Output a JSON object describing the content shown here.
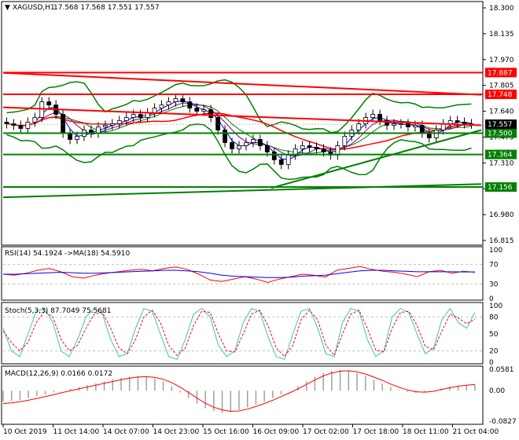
{
  "header": {
    "symbol": "XAGUSD,H1",
    "ohlc": "17.568 17.568 17.551 17.557"
  },
  "indicators": {
    "rsi_label": "RSI(14) 54.1924",
    "rsi_ma_label": "->MA(18) 54.5910",
    "stoch_label": "Stoch(5,3,3) 87.7049 75.5681",
    "macd_label": "MACD(12,26,9) 0.0166 0.0172"
  },
  "colors": {
    "background": "#ffffff",
    "candle": "#000000",
    "resistance": "#ff0000",
    "support": "#008000",
    "bollinger": "#008000",
    "ma_fast": "#0000ff",
    "ma_slow": "#800080",
    "ma_mid": "#ff0000",
    "price_tag_bg": "#000000",
    "rsi_line": "#ff0000",
    "rsi_ma": "#0000ff",
    "stoch_main": "#40c0c0",
    "stoch_signal": "#ff0000",
    "macd_hist": "#a0a0a0",
    "macd_signal": "#ff0000"
  },
  "chart_data": [
    {
      "type": "candlestick",
      "title": "XAGUSD,H1",
      "y_ticks": [
        "18.300",
        "18.135",
        "17.970",
        "17.805",
        "17.640",
        "17.475",
        "17.310",
        "17.145",
        "16.980",
        "16.815"
      ],
      "ylim": [
        16.815,
        18.3
      ],
      "x_ticks": [
        "10 Oct 2019",
        "11 Oct 14:00",
        "14 Oct 07:00",
        "14 Oct 23:00",
        "15 Oct 16:00",
        "16 Oct 09:00",
        "17 Oct 02:00",
        "17 Oct 18:00",
        "18 Oct 11:00",
        "21 Oct 04:00"
      ],
      "close_series": [
        17.56,
        17.55,
        17.53,
        17.57,
        17.6,
        17.7,
        17.68,
        17.62,
        17.5,
        17.46,
        17.48,
        17.52,
        17.5,
        17.54,
        17.55,
        17.56,
        17.58,
        17.6,
        17.62,
        17.6,
        17.63,
        17.66,
        17.68,
        17.7,
        17.72,
        17.7,
        17.66,
        17.64,
        17.65,
        17.6,
        17.52,
        17.44,
        17.4,
        17.42,
        17.44,
        17.46,
        17.42,
        17.38,
        17.33,
        17.3,
        17.36,
        17.4,
        17.42,
        17.41,
        17.4,
        17.38,
        17.36,
        17.42,
        17.48,
        17.52,
        17.56,
        17.6,
        17.62,
        17.58,
        17.55,
        17.56,
        17.56,
        17.54,
        17.55,
        17.5,
        17.47,
        17.52,
        17.56,
        17.58,
        17.57,
        17.56,
        17.557
      ],
      "levels": [
        {
          "label": "17.887",
          "value": 17.887,
          "kind": "resistance"
        },
        {
          "label": "17.748",
          "value": 17.748,
          "kind": "resistance"
        },
        {
          "label": "17.500",
          "value": 17.5,
          "kind": "support"
        },
        {
          "label": "17.364",
          "value": 17.364,
          "kind": "support"
        },
        {
          "label": "17.156",
          "value": 17.156,
          "kind": "support"
        }
      ],
      "current_price": {
        "label": "17.557",
        "value": 17.557
      }
    },
    {
      "type": "line",
      "title": "RSI(14) 54.1924 ->MA(18) 54.5910",
      "y_ticks": [
        "100",
        "70",
        "30",
        "0"
      ],
      "ylim": [
        0,
        100
      ],
      "series": [
        {
          "values": [
            50,
            48,
            52,
            58,
            62,
            55,
            45,
            42,
            48,
            52,
            55,
            58,
            60,
            57,
            62,
            65,
            60,
            50,
            38,
            35,
            40,
            45,
            40,
            33,
            40,
            45,
            50,
            48,
            44,
            58,
            62,
            66,
            60,
            56,
            54,
            50,
            45,
            55,
            58,
            52,
            56,
            54
          ]
        },
        {
          "values": [
            50,
            50,
            51,
            52,
            53,
            54,
            53,
            52,
            52,
            53,
            54,
            55,
            56,
            57,
            58,
            58,
            57,
            55,
            52,
            48,
            46,
            45,
            44,
            43,
            43,
            44,
            46,
            47,
            48,
            51,
            54,
            57,
            58,
            58,
            57,
            56,
            55,
            55,
            55,
            55,
            54.6,
            54.6
          ]
        }
      ]
    },
    {
      "type": "line",
      "title": "Stoch(5,3,3) 87.7049 75.5681",
      "y_ticks": [
        "100",
        "80",
        "50",
        "20",
        "0"
      ],
      "ylim": [
        0,
        100
      ],
      "series": [
        {
          "values": [
            60,
            20,
            10,
            50,
            90,
            95,
            70,
            20,
            10,
            40,
            80,
            95,
            85,
            40,
            10,
            15,
            60,
            95,
            90,
            50,
            10,
            5,
            40,
            85,
            95,
            80,
            30,
            10,
            20,
            70,
            95,
            90,
            45,
            10,
            5,
            50,
            90,
            95,
            60,
            15,
            10,
            70,
            95,
            90,
            40,
            10,
            20,
            80,
            95,
            88,
            50,
            15,
            25,
            75,
            95,
            70,
            60,
            88
          ]
        },
        {
          "values": [
            55,
            35,
            20,
            35,
            70,
            90,
            80,
            40,
            20,
            30,
            60,
            85,
            88,
            60,
            25,
            15,
            40,
            80,
            92,
            70,
            30,
            12,
            25,
            65,
            90,
            88,
            50,
            20,
            18,
            50,
            85,
            92,
            65,
            25,
            10,
            30,
            75,
            92,
            75,
            30,
            12,
            50,
            85,
            92,
            60,
            22,
            18,
            60,
            88,
            90,
            65,
            28,
            22,
            55,
            85,
            78,
            68,
            76
          ]
        }
      ]
    },
    {
      "type": "bar",
      "title": "MACD(12,26,9) 0.0166 0.0172",
      "y_ticks": [
        "0.0581",
        "0.00",
        "-0.0827"
      ],
      "ylim": [
        -0.0827,
        0.0581
      ],
      "series": [
        {
          "values": [
            -0.03,
            -0.028,
            -0.025,
            -0.02,
            -0.015,
            -0.01,
            -0.005,
            0.0,
            0.005,
            0.01,
            0.015,
            0.02,
            0.025,
            0.03,
            0.035,
            0.038,
            0.04,
            0.038,
            0.033,
            0.025,
            0.012,
            -0.005,
            -0.02,
            -0.035,
            -0.048,
            -0.055,
            -0.06,
            -0.058,
            -0.052,
            -0.045,
            -0.038,
            -0.03,
            -0.02,
            -0.01,
            0.0,
            0.012,
            0.025,
            0.038,
            0.048,
            0.054,
            0.056,
            0.054,
            0.048,
            0.04,
            0.03,
            0.02,
            0.01,
            0.002,
            -0.004,
            -0.006,
            -0.004,
            0.0,
            0.006,
            0.011,
            0.014,
            0.016,
            0.017
          ]
        },
        {
          "values": [
            -0.035,
            -0.033,
            -0.03,
            -0.026,
            -0.021,
            -0.016,
            -0.011,
            -0.005,
            0.0,
            0.005,
            0.01,
            0.015,
            0.02,
            0.025,
            0.03,
            0.034,
            0.037,
            0.038,
            0.036,
            0.031,
            0.022,
            0.01,
            -0.005,
            -0.02,
            -0.034,
            -0.045,
            -0.052,
            -0.056,
            -0.055,
            -0.05,
            -0.043,
            -0.035,
            -0.026,
            -0.016,
            -0.006,
            0.005,
            0.017,
            0.029,
            0.04,
            0.048,
            0.053,
            0.054,
            0.051,
            0.045,
            0.037,
            0.028,
            0.018,
            0.009,
            0.002,
            -0.003,
            -0.004,
            -0.002,
            0.003,
            0.008,
            0.012,
            0.015,
            0.0172
          ]
        }
      ]
    }
  ]
}
